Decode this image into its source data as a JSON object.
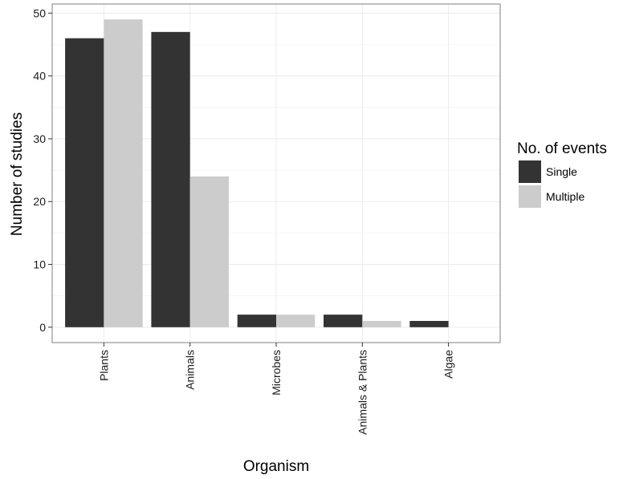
{
  "chart_data": {
    "type": "bar",
    "categories": [
      "Plants",
      "Animals",
      "Microbes",
      "Animals & Plants",
      "Algae"
    ],
    "series": [
      {
        "name": "Single",
        "values": [
          46,
          47,
          2,
          2,
          1
        ],
        "color": "#333333"
      },
      {
        "name": "Multiple",
        "values": [
          49,
          24,
          2,
          1,
          0
        ],
        "color": "#cccccc"
      }
    ],
    "xlabel": "Organism",
    "ylabel": "Number of studies",
    "ylim": [
      -2.45,
      51.45
    ],
    "yticks": [
      0,
      10,
      20,
      30,
      40,
      50
    ],
    "legend_title": "No. of events",
    "legend_position": "right",
    "grid": true,
    "background": "#ffffff",
    "grid_color": "#ebebeb",
    "panel_border_color": "#7f7f7f"
  }
}
